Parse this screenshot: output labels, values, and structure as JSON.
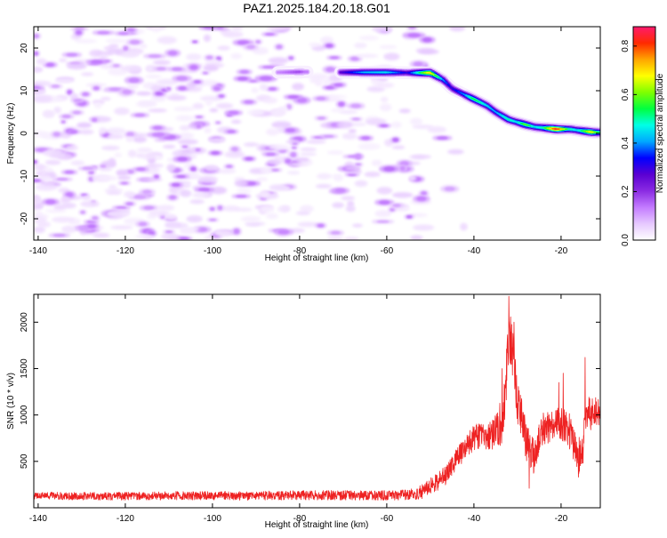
{
  "figure": {
    "title": "PAZ1.2025.184.20.18.G01"
  },
  "chart_data": [
    {
      "type": "heatmap",
      "xlabel": "Height of straight line (km)",
      "ylabel": "Frequency (Hz)",
      "xlim": [
        -141,
        -11
      ],
      "ylim": [
        -25,
        25
      ],
      "xticks": [
        -140,
        -120,
        -100,
        -80,
        -60,
        -40,
        -20
      ],
      "yticks": [
        -20,
        -10,
        0,
        10,
        20
      ],
      "grid": false,
      "colorbar": {
        "label": "Normalized spectral amplitude",
        "range": [
          0,
          0.88
        ],
        "ticks": [
          0.0,
          0.2,
          0.4,
          0.6,
          0.8
        ],
        "colormap": [
          "#ffffff",
          "#e6c8ff",
          "#c37bff",
          "#8a2be2",
          "#5a00d2",
          "#0000ff",
          "#00a8ff",
          "#00ffe6",
          "#00ff40",
          "#7fff00",
          "#ffff00",
          "#ffa500",
          "#ff2a00",
          "#ff1a6e"
        ]
      },
      "ridge": {
        "description_points": [
          {
            "x": -85,
            "y": 14.3,
            "v": 0.12
          },
          {
            "x": -80,
            "y": 14.4,
            "v": 0.18
          },
          {
            "x": -78,
            "y": 14.4,
            "v": 0.12
          },
          {
            "x": -70,
            "y": 14.3,
            "v": 0.28
          },
          {
            "x": -65,
            "y": 14.3,
            "v": 0.42
          },
          {
            "x": -60,
            "y": 14.3,
            "v": 0.45
          },
          {
            "x": -55,
            "y": 14.2,
            "v": 0.3
          },
          {
            "x": -50,
            "y": 14.2,
            "v": 0.72
          },
          {
            "x": -47,
            "y": 12.5,
            "v": 0.4
          },
          {
            "x": -45,
            "y": 10.5,
            "v": 0.3
          },
          {
            "x": -42,
            "y": 9.0,
            "v": 0.4
          },
          {
            "x": -40,
            "y": 8.0,
            "v": 0.55
          },
          {
            "x": -37,
            "y": 6.5,
            "v": 0.45
          },
          {
            "x": -35,
            "y": 5.0,
            "v": 0.4
          },
          {
            "x": -32,
            "y": 3.2,
            "v": 0.5
          },
          {
            "x": -30,
            "y": 2.6,
            "v": 0.45
          },
          {
            "x": -28,
            "y": 2.0,
            "v": 0.6
          },
          {
            "x": -26,
            "y": 1.5,
            "v": 0.45
          },
          {
            "x": -24,
            "y": 1.3,
            "v": 0.5
          },
          {
            "x": -21,
            "y": 1.0,
            "v": 0.85
          },
          {
            "x": -18,
            "y": 1.0,
            "v": 0.5
          },
          {
            "x": -16,
            "y": 0.7,
            "v": 0.45
          },
          {
            "x": -13,
            "y": 0.3,
            "v": 0.7
          },
          {
            "x": -11,
            "y": 0.2,
            "v": 0.5
          }
        ]
      },
      "noise": {
        "x_extent": [
          -141,
          -50
        ],
        "level_range": [
          0.02,
          0.12
        ]
      }
    },
    {
      "type": "line",
      "xlabel": "Height of straight line (km)",
      "ylabel": "SNR (10 * v/v)",
      "xlim": [
        -141,
        -11
      ],
      "ylim": [
        0,
        2300
      ],
      "xticks": [
        -140,
        -120,
        -100,
        -80,
        -60,
        -40,
        -20
      ],
      "yticks": [
        500,
        1000,
        1500,
        2000
      ],
      "grid": false,
      "series": [
        {
          "color": "#ee2222",
          "envelope": {
            "x": [
              -141,
              -130,
              -120,
              -110,
              -100,
              -90,
              -80,
              -70,
              -60,
              -55,
              -52,
              -50,
              -48,
              -46,
              -44,
              -42,
              -40,
              -38,
              -36,
              -35,
              -34,
              -33,
              -32,
              -31,
              -30,
              -29,
              -28,
              -27,
              -26,
              -25,
              -24,
              -22,
              -20,
              -18,
              -16,
              -15,
              -14,
              -13,
              -12,
              -11
            ],
            "y": [
              130,
              125,
              125,
              130,
              130,
              130,
              135,
              135,
              135,
              140,
              170,
              230,
              290,
              370,
              520,
              640,
              760,
              760,
              780,
              850,
              900,
              1050,
              1900,
              1600,
              1150,
              950,
              700,
              620,
              530,
              760,
              850,
              880,
              910,
              820,
              560,
              650,
              1060,
              1000,
              1050,
              1000
            ]
          },
          "noise_amplitude": {
            "x": [
              -141,
              -55,
              -50,
              -45,
              -40,
              -35,
              -33,
              -31,
              -28,
              -25,
              -20,
              -15,
              -11
            ],
            "y": [
              40,
              55,
              90,
              110,
              140,
              170,
              300,
              280,
              200,
              180,
              180,
              210,
              150
            ]
          },
          "spikes": [
            {
              "x": -32,
              "y": 2280
            },
            {
              "x": -30.8,
              "y": 2000
            },
            {
              "x": -33.5,
              "y": 1500
            },
            {
              "x": -27.3,
              "y": 210
            },
            {
              "x": -20.5,
              "y": 1350
            },
            {
              "x": -19.5,
              "y": 1450
            },
            {
              "x": -14.5,
              "y": 1620
            },
            {
              "x": -16,
              "y": 330
            }
          ]
        }
      ]
    }
  ]
}
